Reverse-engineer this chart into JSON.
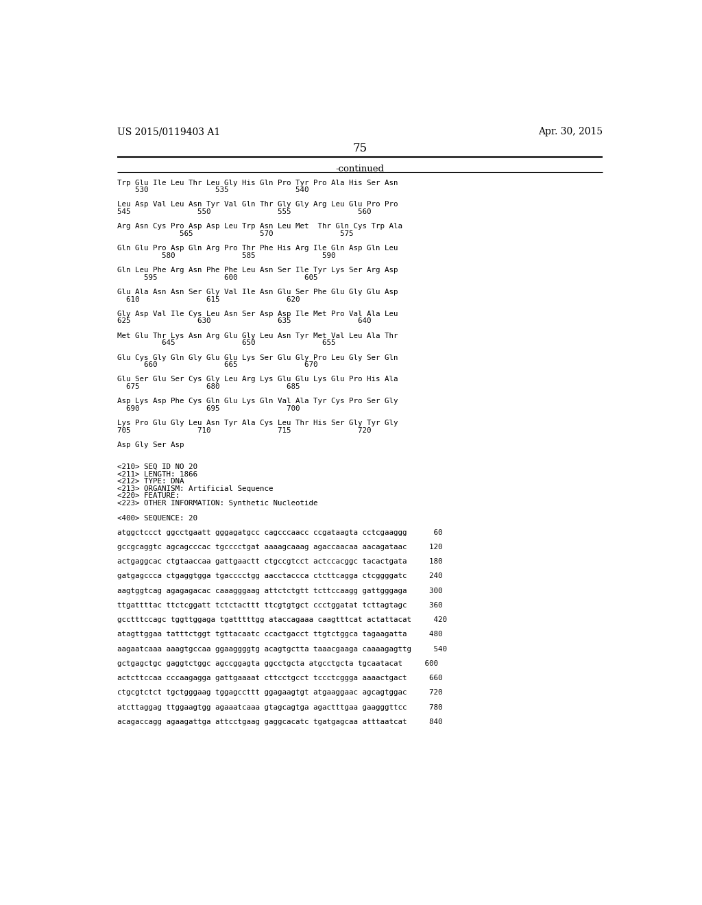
{
  "header_left": "US 2015/0119403 A1",
  "header_right": "Apr. 30, 2015",
  "page_number": "75",
  "continued_label": "-continued",
  "bg_color": "#ffffff",
  "text_color": "#000000",
  "sequence_lines": [
    "Trp Glu Ile Leu Thr Leu Gly His Gln Pro Tyr Pro Ala His Ser Asn",
    "    530               535               540",
    "",
    "Leu Asp Val Leu Asn Tyr Val Gln Thr Gly Gly Arg Leu Glu Pro Pro",
    "545               550               555               560",
    "",
    "Arg Asn Cys Pro Asp Asp Leu Trp Asn Leu Met  Thr Gln Cys Trp Ala",
    "              565               570               575",
    "",
    "Gln Glu Pro Asp Gln Arg Pro Thr Phe His Arg Ile Gln Asp Gln Leu",
    "          580               585               590",
    "",
    "Gln Leu Phe Arg Asn Phe Phe Leu Asn Ser Ile Tyr Lys Ser Arg Asp",
    "      595               600               605",
    "",
    "Glu Ala Asn Asn Ser Gly Val Ile Asn Glu Ser Phe Glu Gly Glu Asp",
    "  610               615               620",
    "",
    "Gly Asp Val Ile Cys Leu Asn Ser Asp Asp Ile Met Pro Val Ala Leu",
    "625               630               635               640",
    "",
    "Met Glu Thr Lys Asn Arg Glu Gly Leu Asn Tyr Met Val Leu Ala Thr",
    "          645               650               655",
    "",
    "Glu Cys Gly Gln Gly Glu Glu Lys Ser Glu Gly Pro Leu Gly Ser Gln",
    "      660               665               670",
    "",
    "Glu Ser Glu Ser Cys Gly Leu Arg Lys Glu Glu Lys Glu Pro His Ala",
    "  675               680               685",
    "",
    "Asp Lys Asp Phe Cys Gln Glu Lys Gln Val Ala Tyr Cys Pro Ser Gly",
    "  690               695               700",
    "",
    "Lys Pro Glu Gly Leu Asn Tyr Ala Cys Leu Thr His Ser Gly Tyr Gly",
    "705               710               715               720",
    "",
    "Asp Gly Ser Asp",
    "",
    "",
    "<210> SEQ ID NO 20",
    "<211> LENGTH: 1866",
    "<212> TYPE: DNA",
    "<213> ORGANISM: Artificial Sequence",
    "<220> FEATURE:",
    "<223> OTHER INFORMATION: Synthetic Nucleotide",
    "",
    "<400> SEQUENCE: 20",
    "",
    "atggctccct ggcctgaatt gggagatgcc cagcccaacc ccgataagta cctcgaaggg      60",
    "",
    "gccgcaggtc agcagcccac tgcccctgat aaaagcaaag agaccaacaa aacagataac     120",
    "",
    "actgaggcac ctgtaaccaa gattgaactt ctgccgtcct actccacggc tacactgata     180",
    "",
    "gatgagccca ctgaggtgga tgacccctgg aacctaccca ctcttcagga ctcggggatc     240",
    "",
    "aagtggtcag agagagacac caaagggaag attctctgtt tcttccaagg gattgggaga     300",
    "",
    "ttgattttac ttctcggatt tctctacttt ttcgtgtgct ccctggatat tcttagtagc     360",
    "",
    "gcctttccagc tggttggaga tgatttttgg ataccagaaa caagtttcat actattacat     420",
    "",
    "atagttggaa tatttctggt tgttacaatc ccactgacct ttgtctggca tagaagatta     480",
    "",
    "aagaatcaaa aaagtgccaa ggaaggggtg acagtgctta taaacgaaga caaaagagttg     540",
    "",
    "gctgagctgc gaggtctggc agccggagta ggcctgcta atgcctgcta tgcaatacat     600",
    "",
    "actcttccaa cccaagagga gattgaaaat cttcctgcct tccctcggga aaaactgact     660",
    "",
    "ctgcgtctct tgctgggaag tggagccttt ggagaagtgt atgaaggaac agcagtggac     720",
    "",
    "atcttaggag ttggaagtgg agaaatcaaa gtagcagtga agactttgaa gaagggttcc     780",
    "",
    "acagaccagg agaagattga attcctgaag gaggcacatc tgatgagcaa atttaatcat     840"
  ]
}
